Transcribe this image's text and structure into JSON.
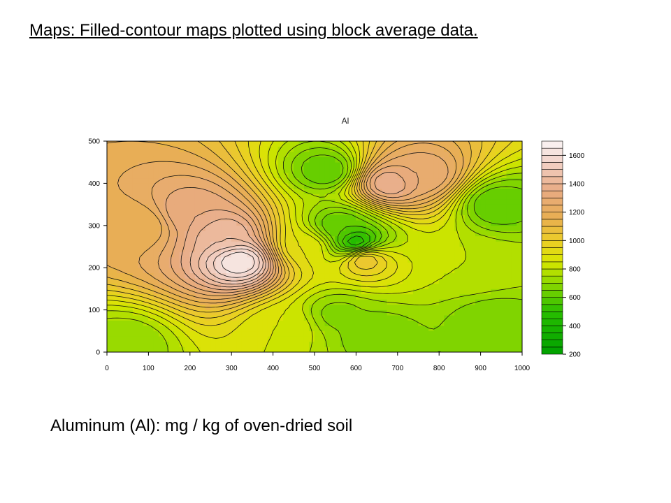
{
  "slide": {
    "title": "Maps: Filled-contour maps plotted using block average data.",
    "caption": "Aluminum (Al): mg / kg of oven-dried soil"
  },
  "chart_data": {
    "type": "heatmap",
    "title": "Al",
    "xlabel": "",
    "ylabel": "",
    "xlim": [
      0,
      1000
    ],
    "ylim": [
      0,
      500
    ],
    "x_ticks": [
      0,
      100,
      200,
      300,
      400,
      500,
      600,
      700,
      800,
      900,
      1000
    ],
    "y_ticks": [
      0,
      100,
      200,
      300,
      400,
      500
    ],
    "colorbar": {
      "range": [
        200,
        1700
      ],
      "ticks": [
        200,
        400,
        600,
        800,
        1000,
        1200,
        1400,
        1600
      ],
      "levels": [
        200,
        250,
        300,
        350,
        400,
        450,
        500,
        550,
        600,
        650,
        700,
        750,
        800,
        850,
        900,
        950,
        1000,
        1050,
        1100,
        1150,
        1200,
        1250,
        1300,
        1350,
        1400,
        1450,
        1500,
        1550,
        1600,
        1650,
        1700
      ]
    },
    "grid": false,
    "field_features": [
      {
        "x": 320,
        "y": 215,
        "value": 1650
      },
      {
        "x": 280,
        "y": 280,
        "value": 1450
      },
      {
        "x": 200,
        "y": 330,
        "value": 1350
      },
      {
        "x": 680,
        "y": 400,
        "value": 1400
      },
      {
        "x": 760,
        "y": 420,
        "value": 1300
      },
      {
        "x": 80,
        "y": 300,
        "value": 1150
      },
      {
        "x": 620,
        "y": 220,
        "value": 1050
      },
      {
        "x": 530,
        "y": 430,
        "value": 600
      },
      {
        "x": 600,
        "y": 260,
        "value": 450
      },
      {
        "x": 560,
        "y": 300,
        "value": 600
      },
      {
        "x": 555,
        "y": 90,
        "value": 680
      },
      {
        "x": 940,
        "y": 350,
        "value": 600
      },
      {
        "x": 930,
        "y": 70,
        "value": 650
      },
      {
        "x": 40,
        "y": 20,
        "value": 700
      },
      {
        "x": 650,
        "y": 40,
        "value": 650
      },
      {
        "x": 430,
        "y": 60,
        "value": 850
      },
      {
        "x": 880,
        "y": 200,
        "value": 800
      },
      {
        "x": 480,
        "y": 250,
        "value": 900
      }
    ]
  }
}
